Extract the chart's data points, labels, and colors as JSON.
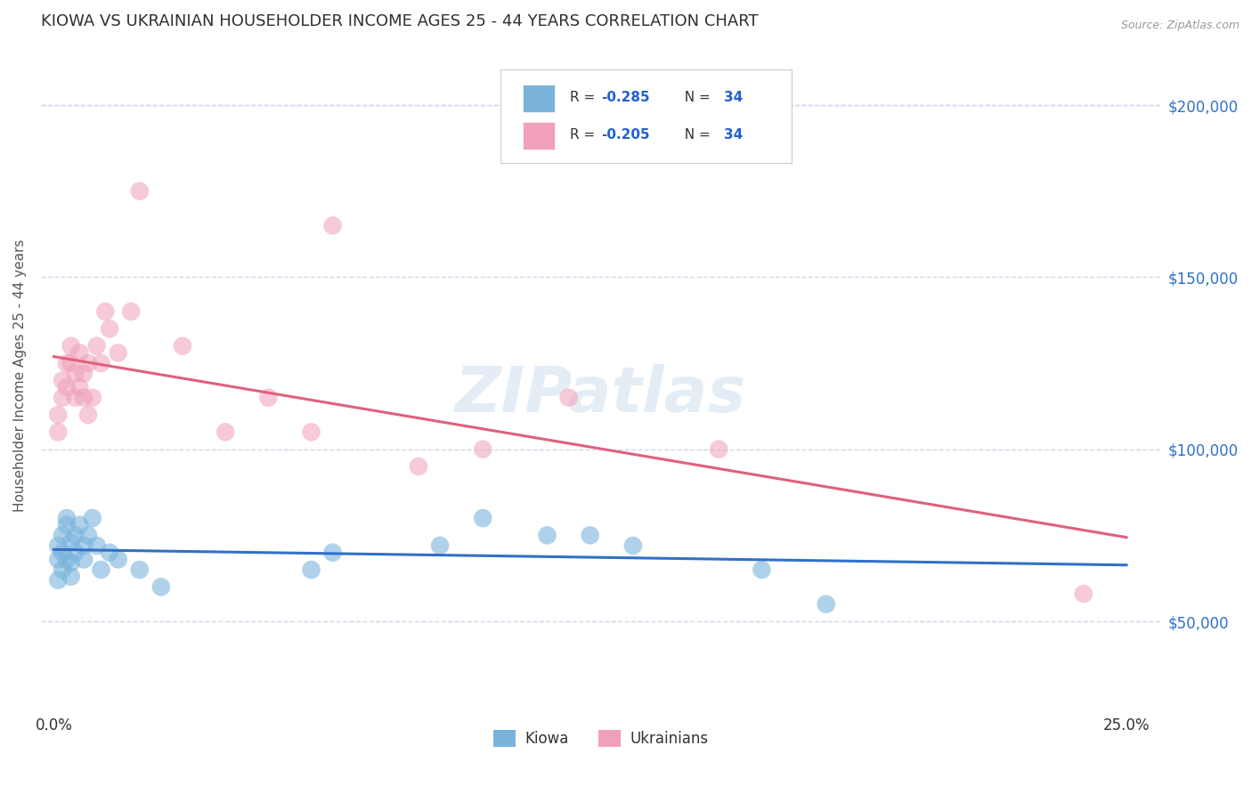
{
  "title": "KIOWA VS UKRAINIAN HOUSEHOLDER INCOME AGES 25 - 44 YEARS CORRELATION CHART",
  "source": "Source: ZipAtlas.com",
  "xlabel_ticks": [
    "0.0%",
    "25.0%"
  ],
  "xlabel_tick_vals": [
    0.0,
    0.25
  ],
  "ylabel_ticks": [
    "$50,000",
    "$100,000",
    "$150,000",
    "$200,000"
  ],
  "ylabel_tick_vals": [
    50000,
    100000,
    150000,
    200000
  ],
  "ylabel_label": "Householder Income Ages 25 - 44 years",
  "xlim": [
    -0.003,
    0.258
  ],
  "ylim": [
    25000,
    218000
  ],
  "watermark": "ZIPatlas",
  "kiowa_x": [
    0.001,
    0.001,
    0.001,
    0.002,
    0.002,
    0.002,
    0.003,
    0.003,
    0.003,
    0.004,
    0.004,
    0.004,
    0.005,
    0.005,
    0.006,
    0.007,
    0.007,
    0.008,
    0.009,
    0.01,
    0.011,
    0.013,
    0.015,
    0.02,
    0.025,
    0.06,
    0.065,
    0.09,
    0.1,
    0.115,
    0.125,
    0.135,
    0.165,
    0.18
  ],
  "kiowa_y": [
    72000,
    68000,
    62000,
    75000,
    70000,
    65000,
    80000,
    78000,
    68000,
    73000,
    67000,
    63000,
    75000,
    70000,
    78000,
    72000,
    68000,
    75000,
    80000,
    72000,
    65000,
    70000,
    68000,
    65000,
    60000,
    65000,
    70000,
    72000,
    80000,
    75000,
    75000,
    72000,
    65000,
    55000
  ],
  "ukrainian_x": [
    0.001,
    0.001,
    0.002,
    0.002,
    0.003,
    0.003,
    0.004,
    0.004,
    0.005,
    0.005,
    0.006,
    0.006,
    0.007,
    0.007,
    0.008,
    0.008,
    0.009,
    0.01,
    0.011,
    0.012,
    0.013,
    0.015,
    0.018,
    0.02,
    0.03,
    0.04,
    0.05,
    0.06,
    0.065,
    0.085,
    0.1,
    0.12,
    0.155,
    0.24
  ],
  "ukrainian_y": [
    110000,
    105000,
    115000,
    120000,
    125000,
    118000,
    130000,
    125000,
    122000,
    115000,
    128000,
    118000,
    122000,
    115000,
    125000,
    110000,
    115000,
    130000,
    125000,
    140000,
    135000,
    128000,
    140000,
    175000,
    130000,
    105000,
    115000,
    105000,
    165000,
    95000,
    100000,
    115000,
    100000,
    58000
  ],
  "kiowa_color": "#7ab4dc",
  "ukrainian_color": "#f0a0b8",
  "kiowa_line_color": "#3070c8",
  "ukrainian_line_color": "#e06080",
  "grid_color": "#d0d8e8",
  "title_color": "#303030",
  "ytick_color": "#3070c8",
  "xtick_color": "#303030",
  "background_color": "#ffffff",
  "legend_box_color": "#e8e8e8",
  "r_value_color": "#2060d0",
  "n_value_color": "#2060d0"
}
